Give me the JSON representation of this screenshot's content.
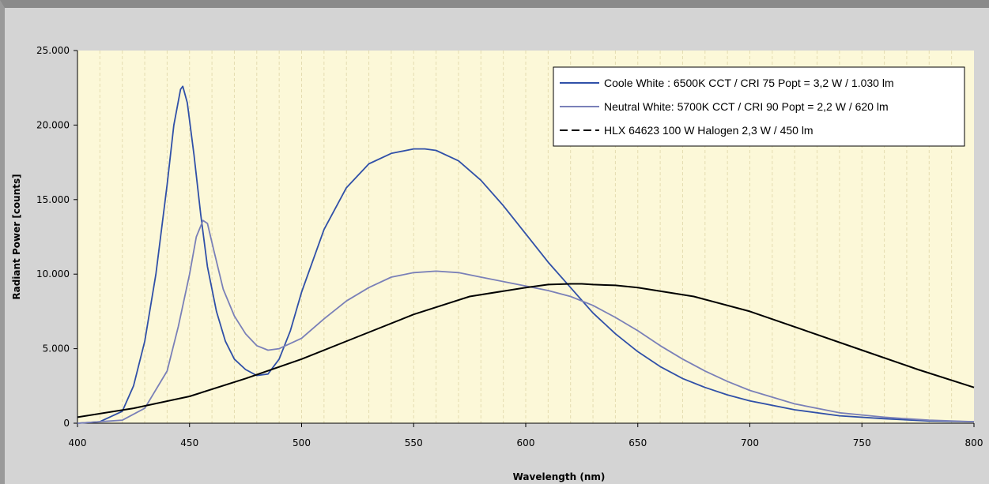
{
  "chart_data": {
    "type": "line",
    "title": "",
    "xlabel": "Wavelength (nm)",
    "ylabel": "Radiant Power  [counts]",
    "xlim": [
      400,
      800
    ],
    "ylim": [
      0,
      25000
    ],
    "x_ticks": [
      400,
      450,
      500,
      550,
      600,
      650,
      700,
      750,
      800
    ],
    "x_tick_labels": [
      "400",
      "450",
      "500",
      "550",
      "600",
      "650",
      "700",
      "750",
      "800"
    ],
    "y_ticks": [
      0,
      5000,
      10000,
      15000,
      20000,
      25000
    ],
    "y_tick_labels": [
      "0",
      "5.000",
      "10.000",
      "15.000",
      "20.000",
      "25.000"
    ],
    "grid": "vertical dashed",
    "legend_position": "top-right",
    "plot_background": "#fcf8d8",
    "series": [
      {
        "name": "Coole White  : 6500K CCT / CRI 75 Popt = 3,2 W / 1.030 lm",
        "color": "#3050a8",
        "style": "solid",
        "x": [
          400,
          410,
          420,
          425,
          430,
          435,
          440,
          443,
          446,
          447,
          449,
          452,
          455,
          458,
          462,
          466,
          470,
          475,
          480,
          485,
          490,
          495,
          500,
          510,
          520,
          530,
          540,
          550,
          555,
          560,
          570,
          580,
          590,
          600,
          610,
          620,
          630,
          640,
          650,
          660,
          670,
          680,
          690,
          700,
          720,
          740,
          760,
          780,
          800
        ],
        "y": [
          0,
          100,
          800,
          2500,
          5500,
          10000,
          16000,
          20000,
          22400,
          22600,
          21500,
          18000,
          14000,
          10500,
          7500,
          5500,
          4300,
          3600,
          3200,
          3300,
          4300,
          6200,
          8800,
          13000,
          15800,
          17400,
          18100,
          18400,
          18400,
          18300,
          17600,
          16300,
          14600,
          12700,
          10800,
          9100,
          7400,
          6000,
          4800,
          3800,
          3000,
          2400,
          1900,
          1500,
          900,
          500,
          300,
          150,
          100
        ]
      },
      {
        "name": "Neutral White: 5700K CCT / CRI 90 Popt = 2,2 W / 620 lm",
        "color": "#7a80b8",
        "style": "solid",
        "x": [
          400,
          420,
          430,
          440,
          445,
          450,
          453,
          456,
          458,
          461,
          465,
          470,
          475,
          480,
          485,
          490,
          500,
          510,
          520,
          530,
          540,
          550,
          560,
          570,
          580,
          590,
          600,
          610,
          620,
          630,
          640,
          650,
          660,
          670,
          680,
          690,
          700,
          720,
          740,
          760,
          780,
          800
        ],
        "y": [
          0,
          200,
          1000,
          3500,
          6500,
          10000,
          12500,
          13600,
          13400,
          11500,
          9000,
          7200,
          6000,
          5200,
          4900,
          5000,
          5700,
          7000,
          8200,
          9100,
          9800,
          10100,
          10200,
          10100,
          9800,
          9500,
          9200,
          8900,
          8500,
          7900,
          7100,
          6200,
          5200,
          4300,
          3500,
          2800,
          2200,
          1300,
          700,
          400,
          200,
          100
        ]
      },
      {
        "name": "HLX 64623 100 W Halogen 2,3 W / 450 lm",
        "color": "#000000",
        "style": "solid",
        "x": [
          400,
          425,
          450,
          475,
          500,
          525,
          550,
          575,
          600,
          610,
          620,
          625,
          630,
          640,
          650,
          675,
          700,
          725,
          750,
          775,
          800
        ],
        "y": [
          400,
          1000,
          1800,
          3000,
          4300,
          5800,
          7300,
          8500,
          9100,
          9300,
          9350,
          9350,
          9300,
          9250,
          9100,
          8500,
          7500,
          6200,
          4900,
          3600,
          2400
        ]
      }
    ]
  }
}
